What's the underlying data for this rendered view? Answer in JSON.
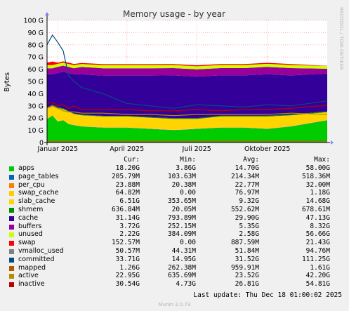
{
  "chart_data": {
    "type": "area",
    "title": "Memory usage - by year",
    "ylabel": "Bytes",
    "ylim": [
      0,
      100
    ],
    "yunit": "G",
    "yticks": [
      "0",
      "10 G",
      "20 G",
      "30 G",
      "40 G",
      "50 G",
      "60 G",
      "70 G",
      "80 G",
      "90 G",
      "100 G"
    ],
    "x_range": [
      "2024-12-18",
      "2025-12-18"
    ],
    "xticks": [
      {
        "date": "2025-01-01",
        "label": "Januar 2025"
      },
      {
        "date": "2025-04-01",
        "label": "April 2025"
      },
      {
        "date": "2025-07-01",
        "label": "Juli 2025"
      },
      {
        "date": "2025-10-01",
        "label": "Oktober 2025"
      }
    ],
    "grid": true,
    "x": [
      "2024-12-18",
      "2024-12-25",
      "2025-01-01",
      "2025-01-08",
      "2025-01-15",
      "2025-01-22",
      "2025-02-01",
      "2025-03-01",
      "2025-04-01",
      "2025-05-01",
      "2025-06-01",
      "2025-07-01",
      "2025-08-01",
      "2025-09-01",
      "2025-10-01",
      "2025-11-01",
      "2025-12-18"
    ],
    "series": [
      {
        "name": "apps",
        "color": "#00cc00",
        "values": [
          19,
          22,
          17,
          18,
          15,
          14,
          13,
          12,
          12,
          11,
          10,
          11,
          12,
          12,
          11,
          13,
          18
        ]
      },
      {
        "name": "page_tables",
        "color": "#0066b3",
        "values": [
          0.2,
          0.2,
          0.2,
          0.2,
          0.2,
          0.2,
          0.2,
          0.2,
          0.2,
          0.2,
          0.2,
          0.2,
          0.2,
          0.2,
          0.2,
          0.2,
          0.2
        ]
      },
      {
        "name": "per_cpu",
        "color": "#ff8000",
        "values": [
          0.02,
          0.02,
          0.02,
          0.02,
          0.02,
          0.02,
          0.02,
          0.02,
          0.02,
          0.02,
          0.02,
          0.02,
          0.02,
          0.02,
          0.02,
          0.02,
          0.02
        ]
      },
      {
        "name": "swap_cache",
        "color": "#ffcc00",
        "values": [
          0.1,
          0.1,
          0.1,
          0.1,
          0.1,
          0.1,
          0.1,
          0.1,
          0.1,
          0.1,
          0.1,
          0.1,
          0.1,
          0.1,
          0.1,
          0.1,
          0.1
        ]
      },
      {
        "name": "slab_cache",
        "color": "#ffd400",
        "values": [
          9,
          8,
          11,
          9,
          10,
          9,
          9,
          9,
          9,
          9,
          9,
          8,
          9,
          9,
          10,
          9,
          6.5
        ]
      },
      {
        "name": "shmem",
        "color": "#008f00",
        "values": [
          0.5,
          0.5,
          0.6,
          0.6,
          0.5,
          0.5,
          0.5,
          0.5,
          0.5,
          0.5,
          0.6,
          0.6,
          0.6,
          0.6,
          0.6,
          0.6,
          0.6
        ]
      },
      {
        "name": "cache",
        "color": "#330099",
        "values": [
          27,
          25,
          28,
          30,
          31,
          32,
          33,
          33,
          33,
          34,
          35,
          34,
          33,
          33,
          34,
          32,
          31
        ]
      },
      {
        "name": "buffers",
        "color": "#990099",
        "values": [
          5,
          5,
          5,
          5,
          5,
          5,
          6,
          6,
          6,
          6,
          6,
          6,
          6,
          6,
          6,
          6,
          4
        ]
      },
      {
        "name": "unused",
        "color": "#ccff00",
        "values": [
          2.5,
          2.5,
          2.5,
          2.5,
          2.5,
          2.5,
          2.5,
          2.5,
          2.5,
          2.5,
          2.5,
          2.5,
          2.5,
          2.5,
          2.5,
          2.5,
          2.2
        ]
      },
      {
        "name": "swap",
        "color": "#ff0000",
        "values": [
          2,
          3,
          1,
          1,
          1,
          1,
          0.8,
          0.8,
          0.8,
          0.8,
          0.8,
          0.8,
          0.8,
          0.8,
          0.8,
          0.8,
          0.15
        ]
      },
      {
        "name": "vmalloc_used",
        "color": "#808080",
        "type": "line",
        "values": [
          0.05,
          0.05,
          0.05,
          0.05,
          0.05,
          0.05,
          0.05,
          0.05,
          0.05,
          0.05,
          0.05,
          0.05,
          0.05,
          0.05,
          0.05,
          0.05,
          0.05
        ]
      },
      {
        "name": "committed",
        "color": "#004d80",
        "type": "line",
        "values": [
          80,
          88,
          82,
          75,
          55,
          50,
          45,
          40,
          32,
          30,
          28,
          31,
          30,
          29,
          31,
          30,
          34
        ]
      },
      {
        "name": "mapped",
        "color": "#b35a00",
        "type": "line",
        "values": [
          1.0,
          1.0,
          1.0,
          1.0,
          1.0,
          1.0,
          1.0,
          1.0,
          1.0,
          1.0,
          1.0,
          1.0,
          1.0,
          1.0,
          1.0,
          1.0,
          1.3
        ]
      },
      {
        "name": "active",
        "color": "#b38f00",
        "type": "line",
        "values": [
          28,
          30,
          28,
          26,
          25,
          25,
          24,
          24,
          23,
          23,
          22,
          23,
          23,
          23,
          23,
          24,
          23
        ]
      },
      {
        "name": "inactive",
        "color": "#bd0000",
        "type": "line",
        "values": [
          32,
          33,
          30,
          31,
          28,
          30,
          27,
          27,
          27,
          26,
          26,
          27,
          26,
          27,
          27,
          28,
          30.5
        ]
      }
    ]
  },
  "legend": {
    "headers": {
      "cur": "Cur:",
      "min": "Min:",
      "avg": "Avg:",
      "max": "Max:"
    },
    "rows": [
      {
        "name": "apps",
        "color": "#00cc00",
        "cur": "18.20G",
        "min": "3.86G",
        "avg": "14.70G",
        "max": "58.00G"
      },
      {
        "name": "page_tables",
        "color": "#0066b3",
        "cur": "205.79M",
        "min": "103.63M",
        "avg": "214.34M",
        "max": "518.36M"
      },
      {
        "name": "per_cpu",
        "color": "#ff8000",
        "cur": "23.88M",
        "min": "20.38M",
        "avg": "22.77M",
        "max": "32.00M"
      },
      {
        "name": "swap_cache",
        "color": "#ffcc00",
        "cur": "64.82M",
        "min": "0.00",
        "avg": "76.97M",
        "max": "1.18G"
      },
      {
        "name": "slab_cache",
        "color": "#ffd400",
        "cur": "6.51G",
        "min": "353.65M",
        "avg": "9.32G",
        "max": "14.68G"
      },
      {
        "name": "shmem",
        "color": "#008f00",
        "cur": "636.84M",
        "min": "20.05M",
        "avg": "552.62M",
        "max": "678.61M"
      },
      {
        "name": "cache",
        "color": "#330099",
        "cur": "31.14G",
        "min": "793.89M",
        "avg": "29.90G",
        "max": "47.13G"
      },
      {
        "name": "buffers",
        "color": "#990099",
        "cur": "3.72G",
        "min": "252.15M",
        "avg": "5.35G",
        "max": "8.32G"
      },
      {
        "name": "unused",
        "color": "#ccff00",
        "cur": "2.22G",
        "min": "384.09M",
        "avg": "2.58G",
        "max": "56.66G"
      },
      {
        "name": "swap",
        "color": "#ff0000",
        "cur": "152.57M",
        "min": "0.00",
        "avg": "887.59M",
        "max": "21.43G"
      },
      {
        "name": "vmalloc_used",
        "color": "#808080",
        "cur": "50.57M",
        "min": "44.31M",
        "avg": "51.84M",
        "max": "94.76M"
      },
      {
        "name": "committed",
        "color": "#004d80",
        "cur": "33.71G",
        "min": "14.95G",
        "avg": "31.52G",
        "max": "111.25G"
      },
      {
        "name": "mapped",
        "color": "#b35a00",
        "cur": "1.26G",
        "min": "262.38M",
        "avg": "959.91M",
        "max": "1.61G"
      },
      {
        "name": "active",
        "color": "#b38f00",
        "cur": "22.95G",
        "min": "635.69M",
        "avg": "23.52G",
        "max": "42.20G"
      },
      {
        "name": "inactive",
        "color": "#bd0000",
        "cur": "30.54G",
        "min": "4.73G",
        "avg": "26.81G",
        "max": "54.81G"
      }
    ]
  },
  "last_update": "Last update: Thu Dec 18 01:00:02 2025",
  "generator": "Munin 2.0.73",
  "watermark": "RRDTOOL / TOBI OETIKER"
}
